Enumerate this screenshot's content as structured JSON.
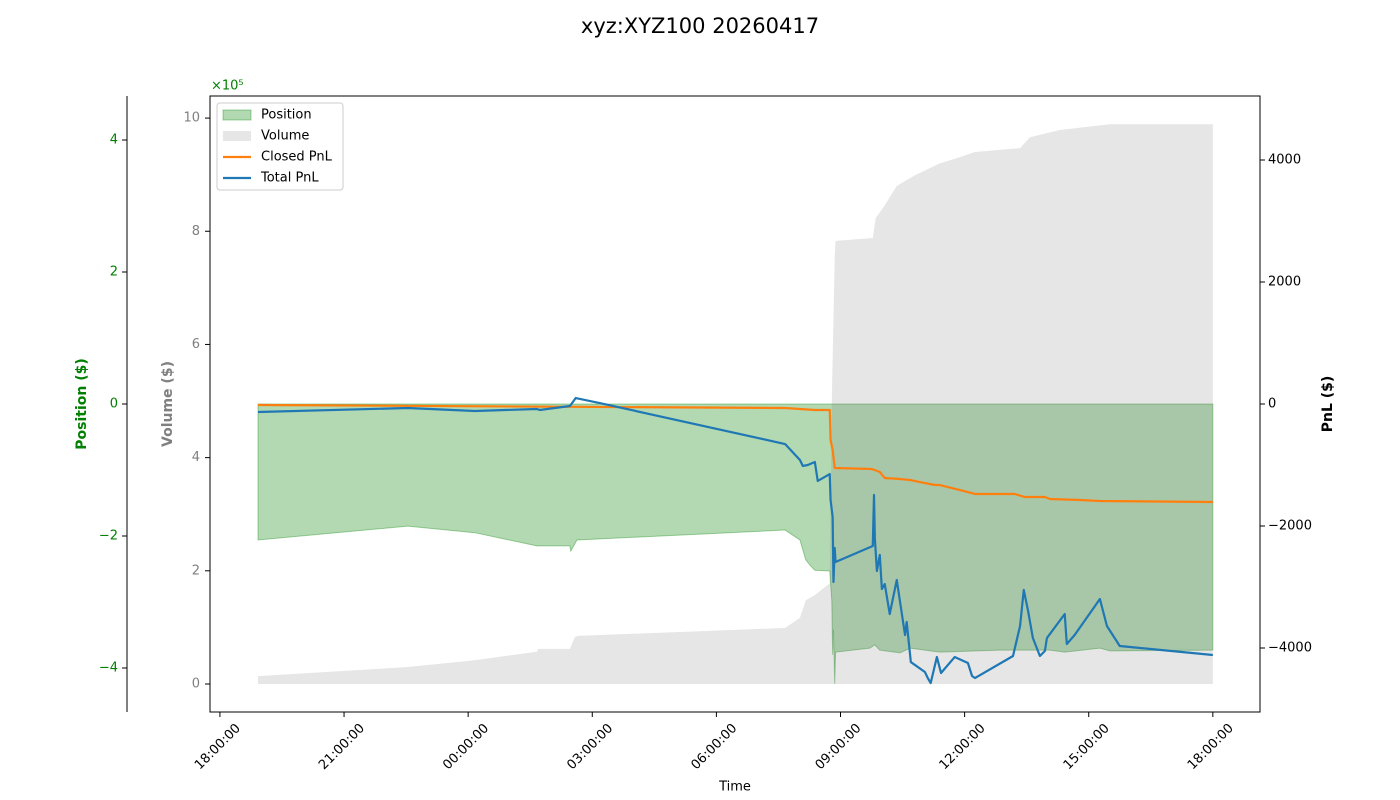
{
  "chart_data": {
    "type": "combo",
    "title": "xyz:XYZ100 20260417",
    "x_label": "Time",
    "y_label": "Position ($)",
    "y3_label": "Volume ($)",
    "y2_label": "PnL ($)",
    "y_offset_label": "×10⁵",
    "xlim": [
      -0.24,
      25.14
    ],
    "xticks": [
      {
        "value": 0,
        "label": "18:00:00"
      },
      {
        "value": 3,
        "label": "21:00:00"
      },
      {
        "value": 6,
        "label": "00:00:00"
      },
      {
        "value": 9,
        "label": "03:00:00"
      },
      {
        "value": 12,
        "label": "06:00:00"
      },
      {
        "value": 15,
        "label": "09:00:00"
      },
      {
        "value": 18,
        "label": "12:00:00"
      },
      {
        "value": 21,
        "label": "15:00:00"
      },
      {
        "value": 24,
        "label": "18:00:00"
      }
    ],
    "ylim": [
      -4.667,
      4.667
    ],
    "yticks": [
      {
        "value": -4,
        "label": "−4"
      },
      {
        "value": -2,
        "label": "−2"
      },
      0,
      2,
      4
    ],
    "y3lim": [
      -0.495,
      10.39
    ],
    "y3ticks": [
      0,
      2,
      4,
      6,
      8,
      10
    ],
    "y2lim": [
      -5049,
      5049
    ],
    "y2ticks": [
      {
        "value": -4000,
        "label": "−4000"
      },
      {
        "value": -2000,
        "label": "−2000"
      },
      0,
      2000,
      4000
    ],
    "legend": "upper left",
    "series": [
      {
        "name": "Position",
        "kind": "area",
        "axis": "y",
        "color": "green",
        "x": [
          0.92,
          4.54,
          6.16,
          7.66,
          8.46,
          8.48,
          8.63,
          13.66,
          14.02,
          14.16,
          14.26,
          14.38,
          14.74,
          14.79,
          14.81,
          14.83,
          14.86,
          14.88,
          15.71,
          15.83,
          15.95,
          16.44,
          16.68,
          17.4,
          18.85,
          20.06,
          20.42,
          21.27,
          21.51,
          24.0
        ],
        "values": [
          -2.06,
          -1.85,
          -1.95,
          -2.15,
          -2.15,
          -2.23,
          -2.06,
          -1.91,
          -2.06,
          -2.36,
          -2.44,
          -2.52,
          -2.53,
          -2.98,
          -3.8,
          -3.42,
          -4.24,
          -3.76,
          -3.7,
          -3.65,
          -3.73,
          -3.77,
          -3.7,
          -3.76,
          -3.73,
          -3.73,
          -3.76,
          -3.7,
          -3.74,
          -3.73
        ]
      },
      {
        "name": "Volume",
        "kind": "area",
        "axis": "y3",
        "color": "gray",
        "x": [
          0.92,
          4.54,
          6.16,
          7.66,
          7.69,
          8.46,
          8.58,
          8.65,
          13.66,
          14.02,
          14.16,
          14.38,
          14.74,
          14.79,
          14.86,
          14.88,
          15.78,
          15.85,
          16.07,
          16.36,
          16.8,
          17.4,
          17.89,
          18.25,
          19.34,
          19.58,
          20.3,
          21.51,
          24.0
        ],
        "values": [
          0.14,
          0.3,
          0.42,
          0.57,
          0.62,
          0.62,
          0.83,
          0.85,
          0.99,
          1.17,
          1.48,
          1.57,
          1.78,
          5.02,
          7.53,
          7.83,
          7.88,
          8.23,
          8.46,
          8.8,
          8.99,
          9.2,
          9.31,
          9.4,
          9.47,
          9.66,
          9.79,
          9.89,
          9.89
        ]
      },
      {
        "name": "Closed PnL",
        "kind": "line",
        "axis": "y2",
        "color": "#ff7f0e",
        "x": [
          0.92,
          13.66,
          14.38,
          14.74,
          14.76,
          14.81,
          14.86,
          15.76,
          15.95,
          16.07,
          16.44,
          16.68,
          16.92,
          17.28,
          17.4,
          17.89,
          18.25,
          19.21,
          19.46,
          19.94,
          20.06,
          20.79,
          21.27,
          24.0
        ],
        "values": [
          -16,
          -66,
          -98,
          -98,
          -590,
          -754,
          -1049,
          -1066,
          -1115,
          -1213,
          -1230,
          -1246,
          -1279,
          -1328,
          -1328,
          -1410,
          -1475,
          -1475,
          -1525,
          -1525,
          -1557,
          -1574,
          -1590,
          -1607
        ]
      },
      {
        "name": "Total PnL",
        "kind": "line",
        "axis": "y2",
        "color": "#1f77b4",
        "x": [
          0.92,
          4.54,
          6.16,
          7.66,
          7.73,
          8.46,
          8.6,
          9.18,
          13.66,
          14.02,
          14.09,
          14.21,
          14.38,
          14.45,
          14.74,
          14.76,
          14.81,
          14.83,
          14.86,
          14.88,
          15.78,
          15.81,
          15.83,
          15.88,
          15.95,
          16.0,
          16.07,
          16.19,
          16.36,
          16.56,
          16.6,
          16.7,
          17.04,
          17.11,
          17.18,
          17.33,
          17.43,
          17.76,
          18.08,
          18.18,
          18.25,
          19.17,
          19.34,
          19.43,
          19.53,
          19.65,
          19.82,
          19.94,
          19.99,
          20.42,
          20.47,
          20.66,
          21.27,
          21.44,
          21.75,
          24.0
        ],
        "values": [
          -131,
          -66,
          -115,
          -82,
          -98,
          -33,
          98,
          16,
          -656,
          -918,
          -1016,
          -1000,
          -951,
          -1262,
          -1148,
          -1574,
          -1852,
          -2918,
          -2361,
          -2590,
          -2328,
          -1492,
          -2197,
          -2738,
          -2475,
          -3033,
          -2951,
          -3443,
          -2885,
          -3787,
          -3574,
          -4230,
          -4393,
          -4492,
          -4574,
          -4148,
          -4410,
          -4148,
          -4246,
          -4459,
          -4492,
          -4131,
          -3639,
          -3049,
          -3377,
          -3836,
          -4131,
          -4049,
          -3836,
          -3443,
          -3934,
          -3787,
          -3197,
          -3639,
          -3967,
          -4115
        ]
      }
    ]
  }
}
